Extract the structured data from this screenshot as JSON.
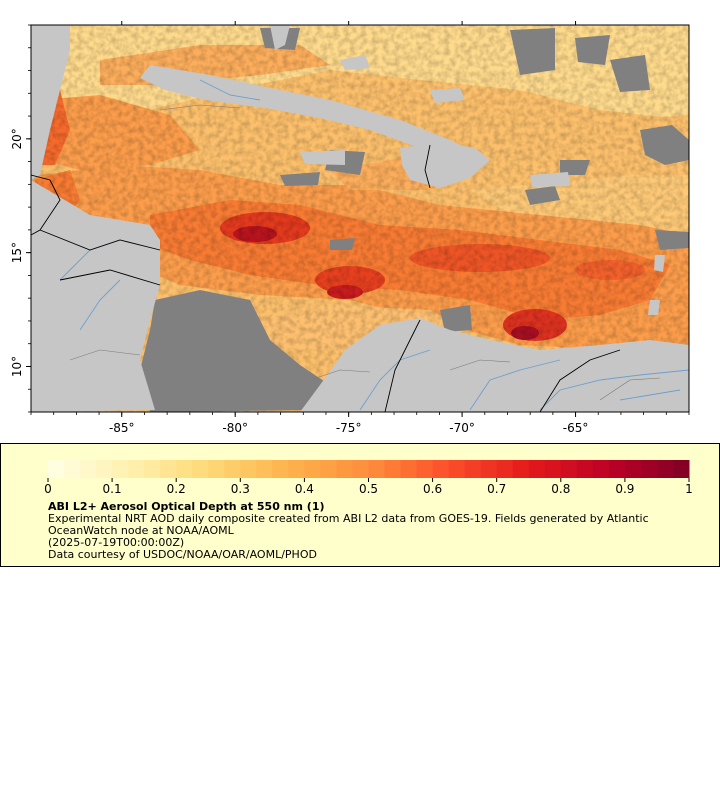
{
  "map": {
    "lon_ticks": [
      {
        "value": -85,
        "label": "-85°"
      },
      {
        "value": -80,
        "label": "-80°"
      },
      {
        "value": -75,
        "label": "-75°"
      },
      {
        "value": -70,
        "label": "-70°"
      },
      {
        "value": -65,
        "label": "-65°"
      }
    ],
    "lat_ticks": [
      {
        "value": 20,
        "label": "20°"
      },
      {
        "value": 15,
        "label": "15°"
      },
      {
        "value": 10,
        "label": "10°"
      }
    ],
    "lon_range": [
      -89,
      -60
    ],
    "lat_range": [
      8,
      25
    ],
    "colors": {
      "land": "#c6c6c6",
      "missing": "#808080",
      "rivers": "#6d9fcf",
      "borders": "#000000"
    }
  },
  "legend": {
    "ticks": [
      "0",
      "0.1",
      "0.2",
      "0.3",
      "0.4",
      "0.5",
      "0.6",
      "0.7",
      "0.8",
      "0.9",
      "1"
    ],
    "range": [
      0,
      1
    ],
    "colormap": [
      "#ffffe5",
      "#fff1b0",
      "#fed976",
      "#feb24c",
      "#fd8d3c",
      "#fc4e2a",
      "#e31a1c",
      "#bd0026",
      "#800026"
    ],
    "title": "ABI L2+ Aerosol Optical Depth at 550 nm (1)",
    "description": "Experimental NRT AOD daily composite created from ABI L2 data from GOES-19. Fields generated by Atlantic OceanWatch node at NOAA/AOML",
    "date": "(2025-07-19T00:00:00Z)",
    "credit": "Data courtesy of USDOC/NOAA/OAR/AOML/PHOD"
  }
}
